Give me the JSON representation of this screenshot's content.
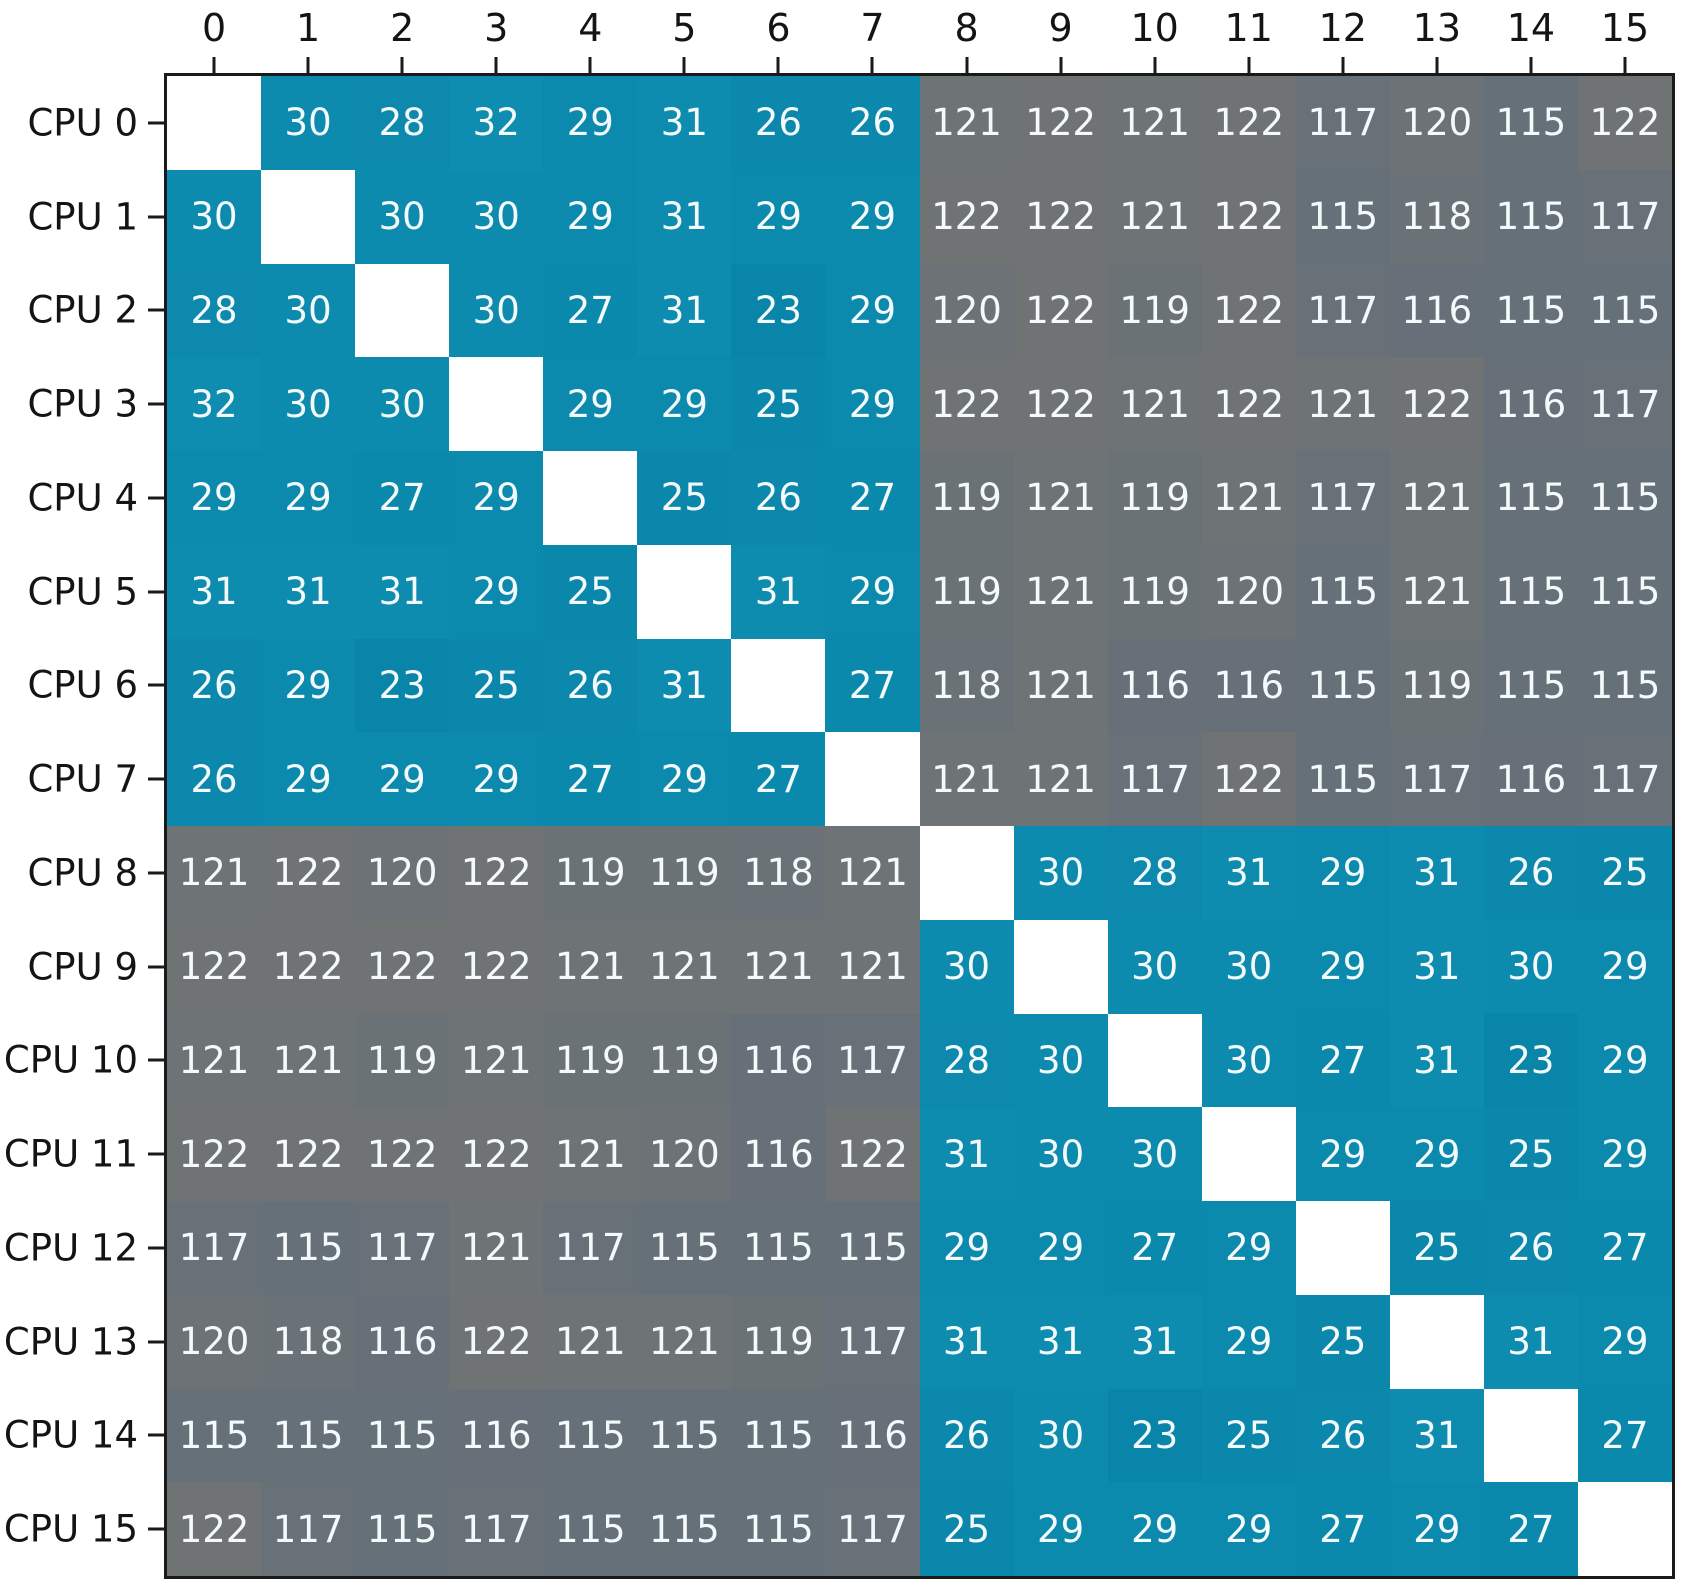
{
  "figure": {
    "background": "#ffffff",
    "frame_color": "#1a1a1a",
    "axis_text_color": "#141414"
  },
  "chart_data": {
    "type": "heatmap",
    "title": "",
    "xlabel": "",
    "ylabel": "",
    "legend_position": "none",
    "grid": false,
    "x_tick_labels": [
      "0",
      "1",
      "2",
      "3",
      "4",
      "5",
      "6",
      "7",
      "8",
      "9",
      "10",
      "11",
      "12",
      "13",
      "14",
      "15"
    ],
    "y_tick_labels": [
      "CPU 0",
      "CPU 1",
      "CPU 2",
      "CPU 3",
      "CPU 4",
      "CPU 5",
      "CPU 6",
      "CPU 7",
      "CPU 8",
      "CPU 9",
      "CPU 10",
      "CPU 11",
      "CPU 12",
      "CPU 13",
      "CPU 14",
      "CPU 15"
    ],
    "matrix": [
      [
        null,
        30,
        28,
        32,
        29,
        31,
        26,
        26,
        121,
        122,
        121,
        122,
        117,
        120,
        115,
        122
      ],
      [
        30,
        null,
        30,
        30,
        29,
        31,
        29,
        29,
        122,
        122,
        121,
        122,
        115,
        118,
        115,
        117
      ],
      [
        28,
        30,
        null,
        30,
        27,
        31,
        23,
        29,
        120,
        122,
        119,
        122,
        117,
        116,
        115,
        115
      ],
      [
        32,
        30,
        30,
        null,
        29,
        29,
        25,
        29,
        122,
        122,
        121,
        122,
        121,
        122,
        116,
        117
      ],
      [
        29,
        29,
        27,
        29,
        null,
        25,
        26,
        27,
        119,
        121,
        119,
        121,
        117,
        121,
        115,
        115
      ],
      [
        31,
        31,
        31,
        29,
        25,
        null,
        31,
        29,
        119,
        121,
        119,
        120,
        115,
        121,
        115,
        115
      ],
      [
        26,
        29,
        23,
        25,
        26,
        31,
        null,
        27,
        118,
        121,
        116,
        116,
        115,
        119,
        115,
        115
      ],
      [
        26,
        29,
        29,
        29,
        27,
        29,
        27,
        null,
        121,
        121,
        117,
        122,
        115,
        117,
        116,
        117
      ],
      [
        121,
        122,
        120,
        122,
        119,
        119,
        118,
        121,
        null,
        30,
        28,
        31,
        29,
        31,
        26,
        25
      ],
      [
        122,
        122,
        122,
        122,
        121,
        121,
        121,
        121,
        30,
        null,
        30,
        30,
        29,
        31,
        30,
        29
      ],
      [
        121,
        121,
        119,
        121,
        119,
        119,
        116,
        117,
        28,
        30,
        null,
        30,
        27,
        31,
        23,
        29
      ],
      [
        122,
        122,
        122,
        122,
        121,
        120,
        116,
        122,
        31,
        30,
        30,
        null,
        29,
        29,
        25,
        29
      ],
      [
        117,
        115,
        117,
        121,
        117,
        115,
        115,
        115,
        29,
        29,
        27,
        29,
        null,
        25,
        26,
        27
      ],
      [
        120,
        118,
        116,
        122,
        121,
        121,
        119,
        117,
        31,
        31,
        31,
        29,
        25,
        null,
        31,
        29
      ],
      [
        115,
        115,
        115,
        116,
        115,
        115,
        115,
        116,
        26,
        30,
        23,
        25,
        26,
        31,
        null,
        27
      ],
      [
        122,
        117,
        115,
        117,
        115,
        115,
        115,
        117,
        25,
        29,
        29,
        29,
        27,
        29,
        27,
        null
      ]
    ],
    "value_ranges": {
      "intra_cluster": [
        23,
        32
      ],
      "inter_cluster": [
        115,
        122
      ],
      "cluster_split": 100
    },
    "colors": {
      "intra_cluster_low": "#0985a9",
      "intra_cluster_high": "#0e8db1",
      "inter_cluster_low": "#667079",
      "inter_cluster_high": "#6f7374",
      "diagonal": "#ffffff",
      "cell_text": "#f4fafb"
    }
  }
}
